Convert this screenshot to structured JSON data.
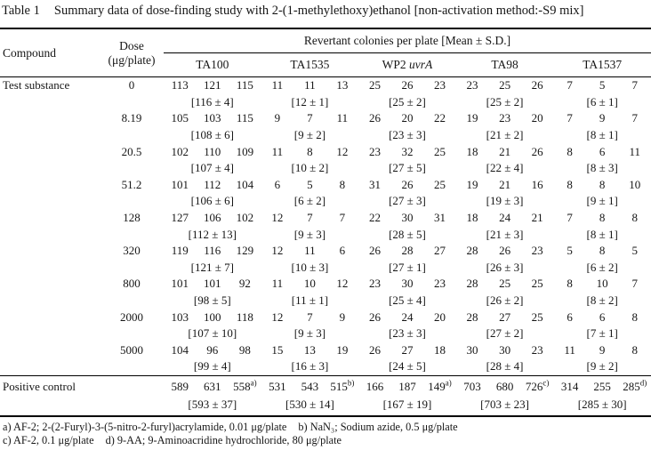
{
  "title": {
    "no": "Table 1",
    "caption": "Summary data of dose-finding study with 2-(1-methylethoxy)ethanol [non-activation method:-S9 mix]"
  },
  "header": {
    "compound": "Compound",
    "dose_line1": "Dose",
    "dose_line2": "(μg/plate)",
    "span_label": "Revertant colonies per plate [Mean ± S.D.]",
    "strains": [
      {
        "label": "TA100"
      },
      {
        "label": "TA1535"
      },
      {
        "label": "WP2",
        "italic": "uvrA"
      },
      {
        "label": "TA98"
      },
      {
        "label": "TA1537"
      }
    ]
  },
  "rows": [
    {
      "compound": "Test substance",
      "dose": "0",
      "cells": [
        {
          "counts": [
            "113",
            "121",
            "115"
          ],
          "mean": "[116 ± 4]"
        },
        {
          "counts": [
            "11",
            "11",
            "13"
          ],
          "mean": "[12 ± 1]"
        },
        {
          "counts": [
            "25",
            "26",
            "23"
          ],
          "mean": "[25 ± 2]"
        },
        {
          "counts": [
            "23",
            "25",
            "26"
          ],
          "mean": "[25 ± 2]"
        },
        {
          "counts": [
            "7",
            "5",
            "7"
          ],
          "mean": "[6 ± 1]"
        }
      ]
    },
    {
      "compound": "",
      "dose": "8.19",
      "cells": [
        {
          "counts": [
            "105",
            "103",
            "115"
          ],
          "mean": "[108 ± 6]"
        },
        {
          "counts": [
            "9",
            "7",
            "11"
          ],
          "mean": "[9 ± 2]"
        },
        {
          "counts": [
            "26",
            "20",
            "22"
          ],
          "mean": "[23 ± 3]"
        },
        {
          "counts": [
            "19",
            "23",
            "20"
          ],
          "mean": "[21 ± 2]"
        },
        {
          "counts": [
            "7",
            "9",
            "7"
          ],
          "mean": "[8 ± 1]"
        }
      ]
    },
    {
      "compound": "",
      "dose": "20.5",
      "cells": [
        {
          "counts": [
            "102",
            "110",
            "109"
          ],
          "mean": "[107 ± 4]"
        },
        {
          "counts": [
            "11",
            "8",
            "12"
          ],
          "mean": "[10 ± 2]"
        },
        {
          "counts": [
            "23",
            "32",
            "25"
          ],
          "mean": "[27 ± 5]"
        },
        {
          "counts": [
            "18",
            "21",
            "26"
          ],
          "mean": "[22 ± 4]"
        },
        {
          "counts": [
            "8",
            "6",
            "11"
          ],
          "mean": "[8 ± 3]"
        }
      ]
    },
    {
      "compound": "",
      "dose": "51.2",
      "cells": [
        {
          "counts": [
            "101",
            "112",
            "104"
          ],
          "mean": "[106 ± 6]"
        },
        {
          "counts": [
            "6",
            "5",
            "8"
          ],
          "mean": "[6 ± 2]"
        },
        {
          "counts": [
            "31",
            "26",
            "25"
          ],
          "mean": "[27 ± 3]"
        },
        {
          "counts": [
            "19",
            "21",
            "16"
          ],
          "mean": "[19 ± 3]"
        },
        {
          "counts": [
            "8",
            "8",
            "10"
          ],
          "mean": "[9 ± 1]"
        }
      ]
    },
    {
      "compound": "",
      "dose": "128",
      "cells": [
        {
          "counts": [
            "127",
            "106",
            "102"
          ],
          "mean": "[112 ± 13]"
        },
        {
          "counts": [
            "12",
            "7",
            "7"
          ],
          "mean": "[9 ± 3]"
        },
        {
          "counts": [
            "22",
            "30",
            "31"
          ],
          "mean": "[28 ± 5]"
        },
        {
          "counts": [
            "18",
            "24",
            "21"
          ],
          "mean": "[21 ± 3]"
        },
        {
          "counts": [
            "7",
            "8",
            "8"
          ],
          "mean": "[8 ± 1]"
        }
      ]
    },
    {
      "compound": "",
      "dose": "320",
      "cells": [
        {
          "counts": [
            "119",
            "116",
            "129"
          ],
          "mean": "[121 ± 7]"
        },
        {
          "counts": [
            "12",
            "11",
            "6"
          ],
          "mean": "[10 ± 3]"
        },
        {
          "counts": [
            "26",
            "28",
            "27"
          ],
          "mean": "[27 ± 1]"
        },
        {
          "counts": [
            "28",
            "26",
            "23"
          ],
          "mean": "[26 ± 3]"
        },
        {
          "counts": [
            "5",
            "8",
            "5"
          ],
          "mean": "[6 ± 2]"
        }
      ]
    },
    {
      "compound": "",
      "dose": "800",
      "cells": [
        {
          "counts": [
            "101",
            "101",
            "92"
          ],
          "mean": "[98 ± 5]"
        },
        {
          "counts": [
            "11",
            "10",
            "12"
          ],
          "mean": "[11 ± 1]"
        },
        {
          "counts": [
            "23",
            "30",
            "23"
          ],
          "mean": "[25 ± 4]"
        },
        {
          "counts": [
            "28",
            "25",
            "25"
          ],
          "mean": "[26 ± 2]"
        },
        {
          "counts": [
            "8",
            "10",
            "7"
          ],
          "mean": "[8 ± 2]"
        }
      ]
    },
    {
      "compound": "",
      "dose": "2000",
      "cells": [
        {
          "counts": [
            "103",
            "100",
            "118"
          ],
          "mean": "[107 ± 10]"
        },
        {
          "counts": [
            "12",
            "7",
            "9"
          ],
          "mean": "[9 ± 3]"
        },
        {
          "counts": [
            "26",
            "24",
            "20"
          ],
          "mean": "[23 ± 3]"
        },
        {
          "counts": [
            "28",
            "27",
            "25"
          ],
          "mean": "[27 ± 2]"
        },
        {
          "counts": [
            "6",
            "6",
            "8"
          ],
          "mean": "[7 ± 1]"
        }
      ]
    },
    {
      "compound": "",
      "dose": "5000",
      "cells": [
        {
          "counts": [
            "104",
            "96",
            "98"
          ],
          "mean": "[99 ± 4]"
        },
        {
          "counts": [
            "15",
            "13",
            "19"
          ],
          "mean": "[16 ± 3]"
        },
        {
          "counts": [
            "26",
            "27",
            "18"
          ],
          "mean": "[24 ± 5]"
        },
        {
          "counts": [
            "30",
            "30",
            "23"
          ],
          "mean": "[28 ± 4]"
        },
        {
          "counts": [
            "11",
            "9",
            "8"
          ],
          "mean": "[9 ± 2]"
        }
      ]
    }
  ],
  "positive_control": {
    "compound": "Positive control",
    "dose": "",
    "cells": [
      {
        "counts": [
          "589",
          "631",
          "558"
        ],
        "sup": "a)",
        "mean": "[593 ± 37]"
      },
      {
        "counts": [
          "531",
          "543",
          "515"
        ],
        "sup": "b)",
        "mean": "[530 ± 14]"
      },
      {
        "counts": [
          "166",
          "187",
          "149"
        ],
        "sup": "a)",
        "mean": "[167 ± 19]"
      },
      {
        "counts": [
          "703",
          "680",
          "726"
        ],
        "sup": "c)",
        "mean": "[703 ± 23]"
      },
      {
        "counts": [
          "314",
          "255",
          "285"
        ],
        "sup": "d)",
        "mean": "[285 ± 30]"
      }
    ]
  },
  "footnote_lines": [
    [
      "a) AF-2; 2-(2-Furyl)-3-(5-nitro-2-furyl)acrylamide, 0.01 μg/plate",
      "b) NaN₃; Sodium azide, 0.5 μg/plate"
    ],
    [
      "c) AF-2, 0.1 μg/plate",
      "d) 9-AA; 9-Aminoacridine hydrochloride, 80 μg/plate"
    ]
  ]
}
